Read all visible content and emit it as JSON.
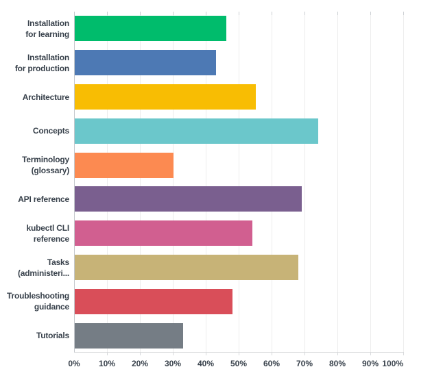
{
  "chart_data": {
    "type": "bar",
    "orientation": "horizontal",
    "title": "",
    "xlabel": "",
    "ylabel": "",
    "unit": "%",
    "xlim": [
      0,
      100
    ],
    "grid": true,
    "legend_position": "none",
    "categories": [
      "Installation for learning",
      "Installation for production",
      "Architecture",
      "Concepts",
      "Terminology (glossary)",
      "API reference",
      "kubectl CLI reference",
      "Tasks (administeri...",
      "Troubleshooting guidance",
      "Tutorials"
    ],
    "category_display_lines": [
      [
        "Installation",
        "for learning"
      ],
      [
        "Installation",
        "for production"
      ],
      [
        "Architecture"
      ],
      [
        "Concepts"
      ],
      [
        "Terminology",
        "(glossary)"
      ],
      [
        "API reference"
      ],
      [
        "kubectl CLI",
        "reference"
      ],
      [
        "Tasks",
        "(administeri..."
      ],
      [
        "Troubleshooting",
        "guidance"
      ],
      [
        "Tutorials"
      ]
    ],
    "values": [
      46,
      43,
      55,
      74,
      30,
      69,
      54,
      68,
      48,
      33
    ],
    "bar_colors": [
      "#00bc6c",
      "#4d79b4",
      "#f8bd03",
      "#6bc7cb",
      "#fc8a51",
      "#7a5f8f",
      "#d15f90",
      "#c7b377",
      "#d94e59",
      "#757d85"
    ],
    "x_tick_labels": [
      "0%",
      "10%",
      "20%",
      "30%",
      "40%",
      "50%",
      "60%",
      "70%",
      "80%",
      "90%",
      "100%"
    ]
  },
  "colors": {
    "background": "#ffffff",
    "label_text": "#39424c",
    "gridline": "#ececec",
    "axis_left": "#c4c8cc",
    "axis_bottom": "#d6d8da"
  }
}
